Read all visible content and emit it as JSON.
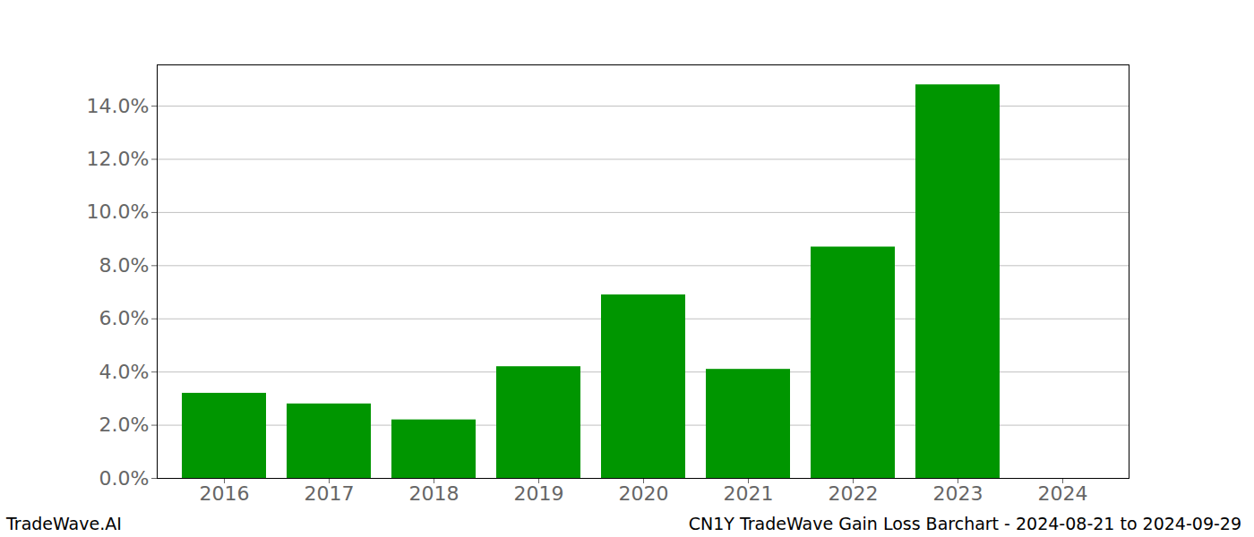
{
  "chart_data": {
    "type": "bar",
    "categories": [
      "2016",
      "2017",
      "2018",
      "2019",
      "2020",
      "2021",
      "2022",
      "2023",
      "2024"
    ],
    "values": [
      3.2,
      2.8,
      2.2,
      4.2,
      6.9,
      4.1,
      8.7,
      14.8,
      0
    ],
    "color": "#009600",
    "ylim": [
      0,
      15.55
    ],
    "yticks": [
      {
        "value": 0,
        "label": "0.0%"
      },
      {
        "value": 2,
        "label": "2.0%"
      },
      {
        "value": 4,
        "label": "4.0%"
      },
      {
        "value": 6,
        "label": "6.0%"
      },
      {
        "value": 8,
        "label": "8.0%"
      },
      {
        "value": 10,
        "label": "10.0%"
      },
      {
        "value": 12,
        "label": "12.0%"
      },
      {
        "value": 14,
        "label": "14.0%"
      }
    ],
    "grid": true,
    "annotations": [
      "TradeWave.AI",
      "CN1Y TradeWave Gain Loss Barchart - 2024-08-21 to 2024-09-29"
    ]
  }
}
